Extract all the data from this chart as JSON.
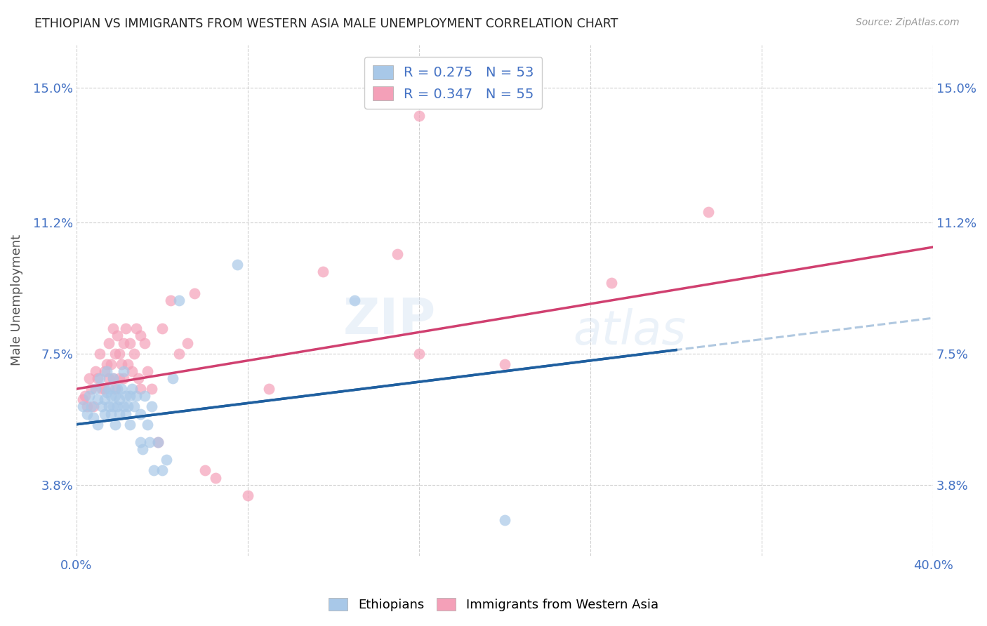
{
  "title": "ETHIOPIAN VS IMMIGRANTS FROM WESTERN ASIA MALE UNEMPLOYMENT CORRELATION CHART",
  "source_text": "Source: ZipAtlas.com",
  "ylabel": "Male Unemployment",
  "xlim": [
    0.0,
    0.4
  ],
  "ylim": [
    0.018,
    0.162
  ],
  "yticks": [
    0.038,
    0.075,
    0.112,
    0.15
  ],
  "ytick_labels": [
    "3.8%",
    "7.5%",
    "11.2%",
    "15.0%"
  ],
  "xticks": [
    0.0,
    0.08,
    0.16,
    0.24,
    0.32,
    0.4
  ],
  "xtick_labels": [
    "0.0%",
    "",
    "",
    "",
    "",
    "40.0%"
  ],
  "axis_label_color": "#4472c4",
  "title_color": "#222222",
  "grid_color": "#d0d0d0",
  "ethiopians_color": "#a8c8e8",
  "western_asia_color": "#f4a0b8",
  "ethiopians_trend_color": "#2060a0",
  "western_asia_trend_color": "#d04070",
  "ethiopians_dashed_color": "#b0c8e0",
  "ethiopians_scatter": [
    [
      0.003,
      0.06
    ],
    [
      0.005,
      0.058
    ],
    [
      0.006,
      0.063
    ],
    [
      0.007,
      0.06
    ],
    [
      0.008,
      0.057
    ],
    [
      0.009,
      0.065
    ],
    [
      0.01,
      0.055
    ],
    [
      0.01,
      0.062
    ],
    [
      0.011,
      0.068
    ],
    [
      0.012,
      0.06
    ],
    [
      0.013,
      0.058
    ],
    [
      0.013,
      0.062
    ],
    [
      0.014,
      0.07
    ],
    [
      0.014,
      0.064
    ],
    [
      0.015,
      0.06
    ],
    [
      0.015,
      0.065
    ],
    [
      0.016,
      0.058
    ],
    [
      0.016,
      0.063
    ],
    [
      0.017,
      0.06
    ],
    [
      0.017,
      0.068
    ],
    [
      0.018,
      0.055
    ],
    [
      0.018,
      0.063
    ],
    [
      0.019,
      0.065
    ],
    [
      0.019,
      0.06
    ],
    [
      0.02,
      0.062
    ],
    [
      0.02,
      0.058
    ],
    [
      0.021,
      0.065
    ],
    [
      0.022,
      0.06
    ],
    [
      0.022,
      0.07
    ],
    [
      0.023,
      0.058
    ],
    [
      0.023,
      0.063
    ],
    [
      0.024,
      0.06
    ],
    [
      0.025,
      0.063
    ],
    [
      0.025,
      0.055
    ],
    [
      0.026,
      0.065
    ],
    [
      0.027,
      0.06
    ],
    [
      0.028,
      0.063
    ],
    [
      0.03,
      0.058
    ],
    [
      0.03,
      0.05
    ],
    [
      0.031,
      0.048
    ],
    [
      0.032,
      0.063
    ],
    [
      0.033,
      0.055
    ],
    [
      0.034,
      0.05
    ],
    [
      0.035,
      0.06
    ],
    [
      0.036,
      0.042
    ],
    [
      0.038,
      0.05
    ],
    [
      0.04,
      0.042
    ],
    [
      0.042,
      0.045
    ],
    [
      0.045,
      0.068
    ],
    [
      0.048,
      0.09
    ],
    [
      0.075,
      0.1
    ],
    [
      0.13,
      0.09
    ],
    [
      0.2,
      0.028
    ]
  ],
  "western_asia_scatter": [
    [
      0.003,
      0.062
    ],
    [
      0.004,
      0.063
    ],
    [
      0.005,
      0.06
    ],
    [
      0.006,
      0.068
    ],
    [
      0.007,
      0.065
    ],
    [
      0.008,
      0.06
    ],
    [
      0.009,
      0.07
    ],
    [
      0.01,
      0.068
    ],
    [
      0.011,
      0.075
    ],
    [
      0.012,
      0.065
    ],
    [
      0.013,
      0.07
    ],
    [
      0.013,
      0.065
    ],
    [
      0.014,
      0.072
    ],
    [
      0.015,
      0.068
    ],
    [
      0.015,
      0.078
    ],
    [
      0.016,
      0.072
    ],
    [
      0.017,
      0.068
    ],
    [
      0.017,
      0.082
    ],
    [
      0.018,
      0.075
    ],
    [
      0.018,
      0.065
    ],
    [
      0.019,
      0.08
    ],
    [
      0.02,
      0.068
    ],
    [
      0.02,
      0.075
    ],
    [
      0.021,
      0.072
    ],
    [
      0.022,
      0.078
    ],
    [
      0.022,
      0.068
    ],
    [
      0.023,
      0.082
    ],
    [
      0.024,
      0.072
    ],
    [
      0.025,
      0.078
    ],
    [
      0.026,
      0.07
    ],
    [
      0.027,
      0.075
    ],
    [
      0.028,
      0.082
    ],
    [
      0.029,
      0.068
    ],
    [
      0.03,
      0.08
    ],
    [
      0.03,
      0.065
    ],
    [
      0.032,
      0.078
    ],
    [
      0.033,
      0.07
    ],
    [
      0.035,
      0.065
    ],
    [
      0.038,
      0.05
    ],
    [
      0.04,
      0.082
    ],
    [
      0.044,
      0.09
    ],
    [
      0.048,
      0.075
    ],
    [
      0.052,
      0.078
    ],
    [
      0.055,
      0.092
    ],
    [
      0.06,
      0.042
    ],
    [
      0.065,
      0.04
    ],
    [
      0.08,
      0.035
    ],
    [
      0.09,
      0.065
    ],
    [
      0.115,
      0.098
    ],
    [
      0.15,
      0.103
    ],
    [
      0.16,
      0.075
    ],
    [
      0.2,
      0.072
    ],
    [
      0.25,
      0.095
    ],
    [
      0.16,
      0.142
    ],
    [
      0.295,
      0.115
    ]
  ]
}
